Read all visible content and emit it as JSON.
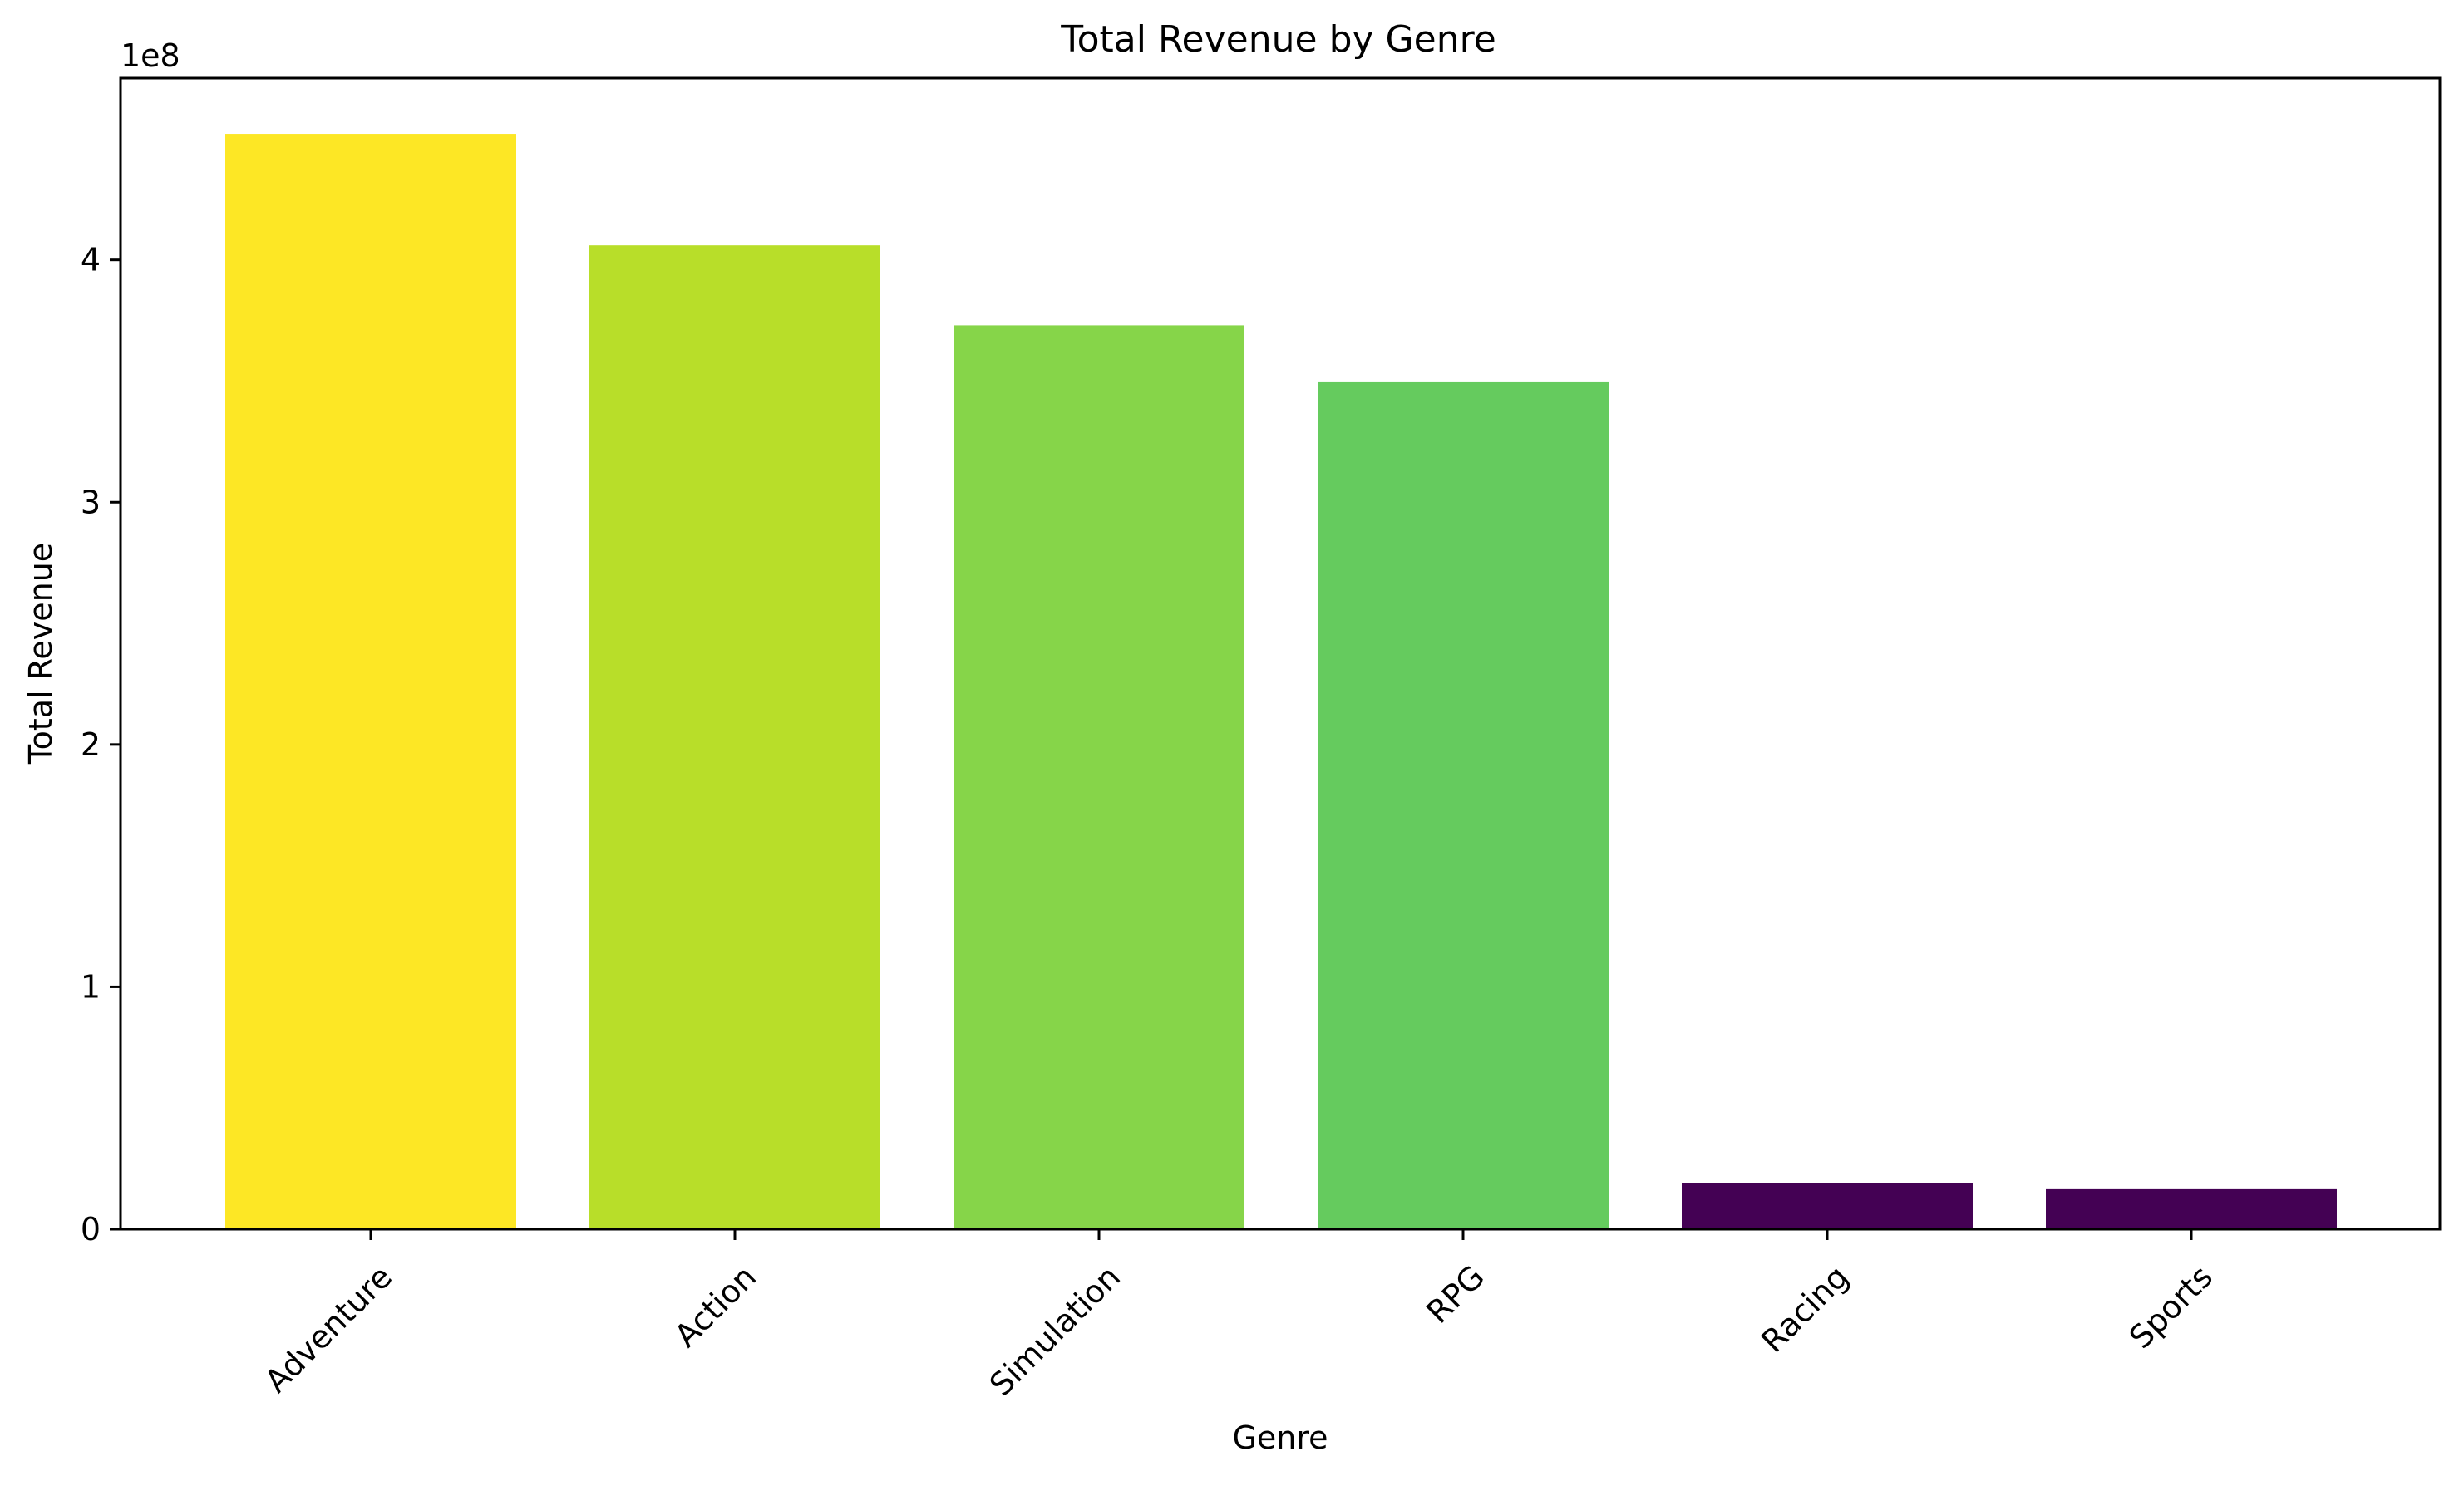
{
  "chart_data": {
    "type": "bar",
    "title": "Total Revenue by Genre",
    "xlabel": "Genre",
    "ylabel": "Total Revenue",
    "offset_text": "1e8",
    "categories": [
      "Adventure",
      "Action",
      "Simulation",
      "RPG",
      "Racing",
      "Sports"
    ],
    "values": [
      452000000,
      406000000,
      373000000,
      349500000,
      19000000,
      16500000
    ],
    "colors": [
      "#fde725",
      "#b8de29",
      "#86d549",
      "#65cb5e",
      "#440154",
      "#440154"
    ],
    "ylim": [
      0,
      475000000
    ],
    "yticks": [
      0,
      100000000,
      200000000,
      300000000,
      400000000
    ],
    "ytick_labels": [
      "0",
      "1",
      "2",
      "3",
      "4"
    ],
    "grid": false,
    "legend": "none"
  }
}
